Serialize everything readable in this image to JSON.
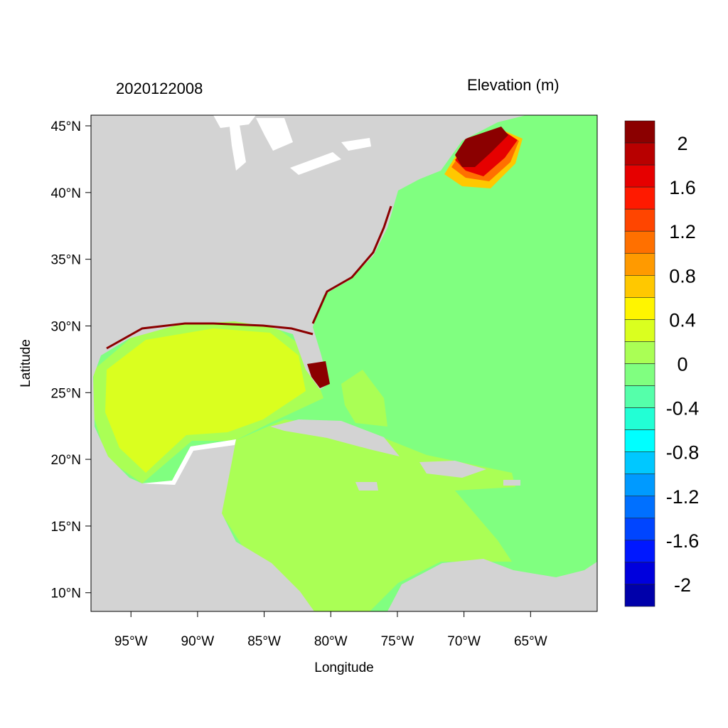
{
  "title_left": "2020122008",
  "title_right": "Elevation (m)",
  "chart_data": {
    "type": "heatmap",
    "xlabel": "Longitude",
    "ylabel": "Latitude",
    "xlim": [
      -98.0,
      -60.0
    ],
    "ylim": [
      8.6,
      45.8
    ],
    "xticks": [
      {
        "value": -95,
        "label": "95°W"
      },
      {
        "value": -90,
        "label": "90°W"
      },
      {
        "value": -85,
        "label": "85°W"
      },
      {
        "value": -80,
        "label": "80°W"
      },
      {
        "value": -75,
        "label": "75°W"
      },
      {
        "value": -70,
        "label": "70°W"
      },
      {
        "value": -65,
        "label": "65°W"
      }
    ],
    "yticks": [
      {
        "value": 45,
        "label": "45°N"
      },
      {
        "value": 40,
        "label": "40°N"
      },
      {
        "value": 35,
        "label": "35°N"
      },
      {
        "value": 30,
        "label": "30°N"
      },
      {
        "value": 25,
        "label": "25°N"
      },
      {
        "value": 20,
        "label": "20°N"
      },
      {
        "value": 15,
        "label": "15°N"
      },
      {
        "value": 10,
        "label": "10°N"
      }
    ],
    "colorbar": {
      "range": [
        -2.2,
        2.2
      ],
      "step": 0.2,
      "colors": [
        "#8b0000",
        "#b80000",
        "#e60000",
        "#ff1a00",
        "#ff4500",
        "#ff7000",
        "#ff9a00",
        "#ffc800",
        "#fff500",
        "#daff1f",
        "#aaff55",
        "#80ff80",
        "#55ffaa",
        "#22ffd5",
        "#00ffff",
        "#00c8ff",
        "#009aff",
        "#0070ff",
        "#0045ff",
        "#0018ff",
        "#0000dd",
        "#0000aa"
      ],
      "labels": [
        {
          "value": 2,
          "label": "2"
        },
        {
          "value": 1.6,
          "label": "1.6"
        },
        {
          "value": 1.2,
          "label": "1.2"
        },
        {
          "value": 0.8,
          "label": "0.8"
        },
        {
          "value": 0.4,
          "label": "0.4"
        },
        {
          "value": 0,
          "label": "0"
        },
        {
          "value": -0.4,
          "label": "-0.4"
        },
        {
          "value": -0.8,
          "label": "-0.8"
        },
        {
          "value": -1.2,
          "label": "-1.2"
        },
        {
          "value": -1.6,
          "label": "-1.6"
        },
        {
          "value": -2,
          "label": "-2"
        }
      ]
    },
    "land_color": "#d3d3d3"
  }
}
